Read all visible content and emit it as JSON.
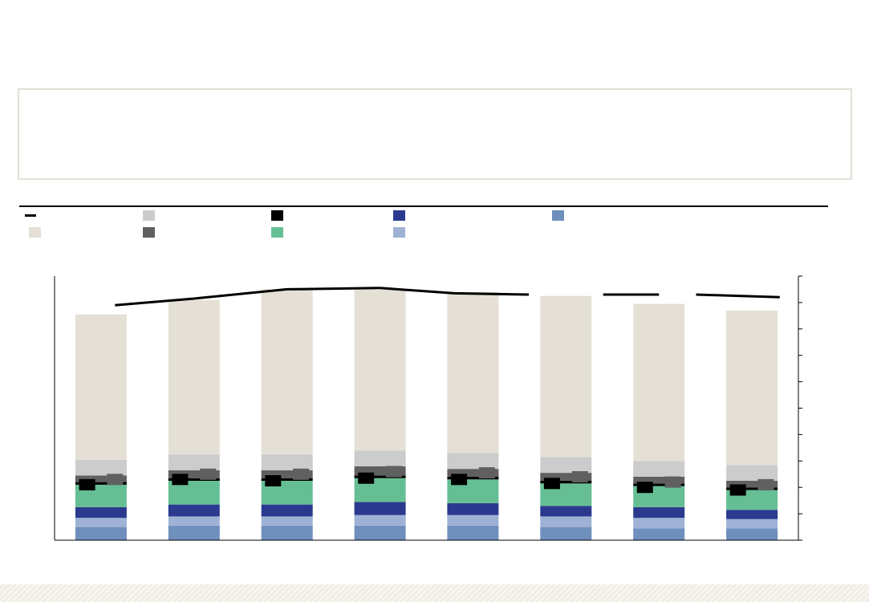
{
  "colors": {
    "total_line": "#000000",
    "residual": "#e4e0d5",
    "light_grey": "#cccccc",
    "dark_grey": "#606060",
    "black": "#000000",
    "green": "#66bf94",
    "navy": "#2b3a8f",
    "light_blue": "#9fb2d6",
    "steel_blue": "#6f8fbd"
  },
  "chart_data": {
    "type": "bar",
    "stacked": true,
    "categories": [
      "",
      "",
      "",
      "",
      "",
      "",
      "",
      ""
    ],
    "y_axis": {
      "side": "right",
      "ylim": [
        0,
        100
      ],
      "tick_step": 10,
      "tick_labels_shown": false
    },
    "legend_placement": "top",
    "series": [
      {
        "key": "steel_blue",
        "values": [
          5,
          5.5,
          5.5,
          5.5,
          5.5,
          5,
          4.5,
          4.5
        ]
      },
      {
        "key": "light_blue",
        "values": [
          3.5,
          3.5,
          3.5,
          4,
          4,
          4,
          4,
          3.5
        ]
      },
      {
        "key": "navy",
        "values": [
          4,
          4.5,
          4.5,
          5,
          4.5,
          4,
          4,
          3.5
        ]
      },
      {
        "key": "green",
        "values": [
          8.5,
          9,
          9,
          9,
          9,
          8.5,
          8,
          7.5
        ]
      },
      {
        "key": "black",
        "values": [
          1,
          1,
          1,
          1,
          1,
          1,
          1,
          1
        ]
      },
      {
        "key": "dark_grey",
        "values": [
          2.5,
          3,
          3,
          3.5,
          3,
          3,
          2.5,
          2.5
        ]
      },
      {
        "key": "light_grey",
        "values": [
          6,
          6,
          6,
          6,
          6,
          6,
          6,
          6
        ]
      },
      {
        "key": "residual",
        "values": [
          55,
          58.5,
          62.5,
          61,
          61,
          61,
          59.5,
          58.5
        ]
      }
    ],
    "marker_series": [
      {
        "key": "black",
        "shape": "square",
        "x_offset": -0.15,
        "values": [
          21,
          23,
          22.5,
          23.5,
          23,
          21.5,
          20,
          19
        ]
      },
      {
        "key": "dark_grey",
        "shape": "square",
        "x_offset": 0.15,
        "values": [
          23,
          25,
          25,
          26,
          25.5,
          24,
          22,
          21
        ]
      }
    ],
    "line_series": {
      "key": "total_line",
      "segments": [
        {
          "from": 0.15,
          "to": 1.0,
          "values": [
            89,
            91.5
          ]
        },
        {
          "from": 1.0,
          "to": 3.0,
          "values": [
            91.5,
            95,
            95.5
          ]
        },
        {
          "from": 3.0,
          "to": 4.6,
          "values": [
            95.5,
            93.5,
            93
          ]
        },
        {
          "from": 5.4,
          "to": 6.0,
          "values": [
            93,
            93
          ]
        },
        {
          "from": 6.4,
          "to": 7.3,
          "values": [
            93,
            92
          ]
        }
      ]
    }
  }
}
